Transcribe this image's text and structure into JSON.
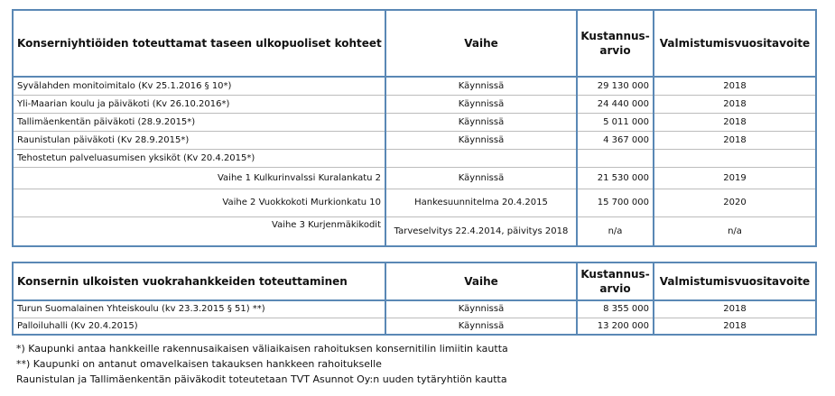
{
  "table1": {
    "headers": {
      "item": "Konserniyhtiöiden toteuttamat taseen ulkopuoliset kohteet",
      "phase": "Vaihe",
      "cost_line1": "Kustannus-",
      "cost_line2": "arvio",
      "target": "Valmistumisvuositavoite"
    },
    "rows": [
      {
        "item": "Syvälahden monitoimitalo (Kv 25.1.2016 § 10*)",
        "phase": "Käynnissä",
        "cost": "29 130 000",
        "year": "2018"
      },
      {
        "item": "Yli-Maarian koulu ja päiväkoti (Kv 26.10.2016*)",
        "phase": "Käynnissä",
        "cost": "24 440 000",
        "year": "2018"
      },
      {
        "item": "Tallimäenkentän päiväkoti (28.9.2015*)",
        "phase": "Käynnissä",
        "cost": "5 011 000",
        "year": "2018"
      },
      {
        "item": "Raunistulan päiväkoti (Kv 28.9.2015*)",
        "phase": "Käynnissä",
        "cost": "4 367 000",
        "year": "2018"
      },
      {
        "item": "Tehostetun palveluasumisen yksiköt  (Kv 20.4.2015*)",
        "phase": "",
        "cost": "",
        "year": ""
      }
    ],
    "sub_rows": [
      {
        "item": "Vaihe 1 Kulkurinvalssi Kuralankatu 2",
        "phase": "Käynnissä",
        "cost": "21 530 000",
        "year": "2019"
      },
      {
        "item": "Vaihe 2 Vuokkokoti Murkionkatu 10",
        "phase": "Hankesuunnitelma 20.4.2015",
        "cost": "15 700 000",
        "year": "2020"
      },
      {
        "item": "Vaihe 3 Kurjenmäkikodit",
        "phase": "Tarveselvitys 22.4.2014, päivitys 2018",
        "cost": "n/a",
        "year": "n/a"
      }
    ]
  },
  "table2": {
    "headers": {
      "item": "Konsernin ulkoisten vuokrahankkeiden toteuttaminen",
      "phase": "Vaihe",
      "cost_line1": "Kustannus-",
      "cost_line2": "arvio",
      "target": "Valmistumisvuositavoite"
    },
    "rows": [
      {
        "item": "Turun Suomalainen Yhteiskoulu (kv 23.3.2015 § 51) **)",
        "phase": "Käynnissä",
        "cost": "8 355 000",
        "year": "2018"
      },
      {
        "item": "Palloiluhalli  (Kv 20.4.2015)",
        "phase": "Käynnissä",
        "cost": "13 200 000",
        "year": "2018"
      }
    ]
  },
  "notes": [
    "*) Kaupunki antaa hankkeille rakennusaikaisen väliaikaisen rahoituksen konsernitilin limiitin kautta",
    "**) Kaupunki on antanut omavelkaisen takauksen hankkeen rahoitukselle",
    "Raunistulan ja Tallimäenkentän päiväkodit toteutetaan TVT Asunnot Oy:n uuden tytäryhtiön kautta"
  ],
  "colors": {
    "border_accent": "#5a88b5",
    "grid": "#bcbcbc"
  }
}
